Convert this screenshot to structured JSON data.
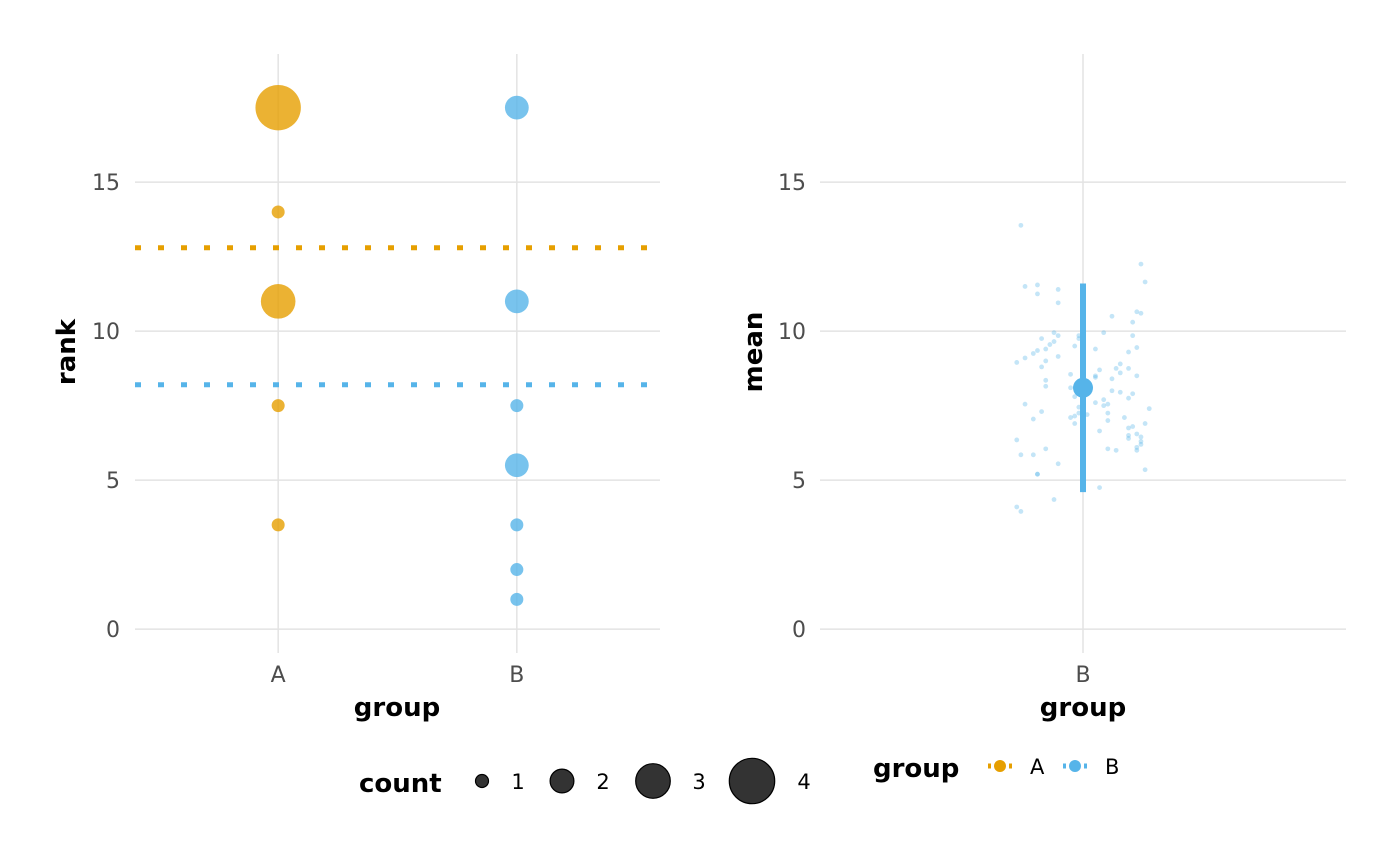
{
  "chart_data": [
    {
      "type": "scatter",
      "xlabel": "group",
      "ylabel": "rank",
      "categories": [
        "A",
        "B"
      ],
      "ylim": [
        -0.8,
        19.3
      ],
      "yticks": [
        0,
        5,
        10,
        15
      ],
      "grid": true,
      "reference_lines": [
        {
          "group": "A",
          "y": 12.8,
          "style": "dotted"
        },
        {
          "group": "B",
          "y": 8.2,
          "style": "dotted"
        }
      ],
      "series": [
        {
          "name": "A",
          "points": [
            {
              "x": "A",
              "y": 17.5,
              "count": 4
            },
            {
              "x": "A",
              "y": 14,
              "count": 1
            },
            {
              "x": "A",
              "y": 11,
              "count": 3
            },
            {
              "x": "A",
              "y": 7.5,
              "count": 1
            },
            {
              "x": "A",
              "y": 3.5,
              "count": 1
            }
          ]
        },
        {
          "name": "B",
          "points": [
            {
              "x": "B",
              "y": 17.5,
              "count": 2
            },
            {
              "x": "B",
              "y": 11,
              "count": 2
            },
            {
              "x": "B",
              "y": 7.5,
              "count": 1
            },
            {
              "x": "B",
              "y": 5.5,
              "count": 2
            },
            {
              "x": "B",
              "y": 3.5,
              "count": 1
            },
            {
              "x": "B",
              "y": 2,
              "count": 1
            },
            {
              "x": "B",
              "y": 1,
              "count": 1
            }
          ]
        }
      ]
    },
    {
      "type": "scatter",
      "xlabel": "group",
      "ylabel": "mean",
      "categories": [
        "B"
      ],
      "ylim": [
        -0.8,
        19.3
      ],
      "yticks": [
        0,
        5,
        10,
        15
      ],
      "grid": true,
      "summary": {
        "group": "B",
        "mean": 8.1,
        "lower": 4.6,
        "upper": 11.6
      },
      "series": [
        {
          "name": "B",
          "jitter_points": [
            {
              "x": -0.15,
              "y": 13.55
            },
            {
              "x": 0.14,
              "y": 12.25
            },
            {
              "x": 0.15,
              "y": 11.65
            },
            {
              "x": -0.11,
              "y": 11.55
            },
            {
              "x": -0.14,
              "y": 11.5
            },
            {
              "x": -0.06,
              "y": 11.4
            },
            {
              "x": -0.11,
              "y": 11.25
            },
            {
              "x": -0.06,
              "y": 10.95
            },
            {
              "x": 0.13,
              "y": 10.65
            },
            {
              "x": 0.14,
              "y": 10.6
            },
            {
              "x": 0.07,
              "y": 10.5
            },
            {
              "x": 0.12,
              "y": 10.3
            },
            {
              "x": 0.05,
              "y": 9.95
            },
            {
              "x": -0.07,
              "y": 9.95
            },
            {
              "x": -0.06,
              "y": 9.85
            },
            {
              "x": -0.01,
              "y": 9.85
            },
            {
              "x": -0.01,
              "y": 9.75
            },
            {
              "x": 0.12,
              "y": 9.85
            },
            {
              "x": -0.1,
              "y": 9.75
            },
            {
              "x": -0.07,
              "y": 9.65
            },
            {
              "x": -0.08,
              "y": 9.55
            },
            {
              "x": 0.13,
              "y": 9.45
            },
            {
              "x": -0.02,
              "y": 9.5
            },
            {
              "x": 0.03,
              "y": 9.4
            },
            {
              "x": -0.11,
              "y": 9.35
            },
            {
              "x": -0.09,
              "y": 9.4
            },
            {
              "x": 0.11,
              "y": 9.3
            },
            {
              "x": -0.12,
              "y": 9.25
            },
            {
              "x": -0.06,
              "y": 9.15
            },
            {
              "x": -0.14,
              "y": 9.1
            },
            {
              "x": -0.09,
              "y": 9.0
            },
            {
              "x": -0.16,
              "y": 8.95
            },
            {
              "x": 0.09,
              "y": 8.9
            },
            {
              "x": 0.11,
              "y": 8.75
            },
            {
              "x": 0.08,
              "y": 8.75
            },
            {
              "x": -0.1,
              "y": 8.8
            },
            {
              "x": 0.04,
              "y": 8.7
            },
            {
              "x": -0.03,
              "y": 8.55
            },
            {
              "x": 0.13,
              "y": 8.5
            },
            {
              "x": 0.09,
              "y": 8.6
            },
            {
              "x": 0.07,
              "y": 8.4
            },
            {
              "x": 0.03,
              "y": 8.5
            },
            {
              "x": -0.09,
              "y": 8.35
            },
            {
              "x": -0.09,
              "y": 8.15
            },
            {
              "x": 0.03,
              "y": 8.45
            },
            {
              "x": -0.03,
              "y": 8.1
            },
            {
              "x": 0.07,
              "y": 8.0
            },
            {
              "x": 0.09,
              "y": 7.95
            },
            {
              "x": 0.12,
              "y": 7.9
            },
            {
              "x": 0.11,
              "y": 7.75
            },
            {
              "x": -0.02,
              "y": 7.8
            },
            {
              "x": 0.05,
              "y": 7.7
            },
            {
              "x": 0.03,
              "y": 7.6
            },
            {
              "x": 0.06,
              "y": 7.55
            },
            {
              "x": -0.14,
              "y": 7.55
            },
            {
              "x": 0.05,
              "y": 7.5
            },
            {
              "x": -0.01,
              "y": 7.45
            },
            {
              "x": 0.16,
              "y": 7.4
            },
            {
              "x": -0.1,
              "y": 7.3
            },
            {
              "x": 0.06,
              "y": 7.25
            },
            {
              "x": -0.01,
              "y": 7.25
            },
            {
              "x": 0.01,
              "y": 7.2
            },
            {
              "x": -0.02,
              "y": 7.15
            },
            {
              "x": -0.03,
              "y": 7.1
            },
            {
              "x": -0.12,
              "y": 7.05
            },
            {
              "x": 0.1,
              "y": 7.1
            },
            {
              "x": 0.06,
              "y": 7.0
            },
            {
              "x": 0.15,
              "y": 6.9
            },
            {
              "x": 0.12,
              "y": 6.8
            },
            {
              "x": 0.11,
              "y": 6.75
            },
            {
              "x": -0.02,
              "y": 6.9
            },
            {
              "x": 0.04,
              "y": 6.65
            },
            {
              "x": 0.13,
              "y": 6.55
            },
            {
              "x": 0.11,
              "y": 6.5
            },
            {
              "x": 0.14,
              "y": 6.45
            },
            {
              "x": 0.11,
              "y": 6.4
            },
            {
              "x": 0.0,
              "y": 6.45
            },
            {
              "x": 0.14,
              "y": 6.3
            },
            {
              "x": -0.16,
              "y": 6.35
            },
            {
              "x": 0.14,
              "y": 6.2
            },
            {
              "x": 0.13,
              "y": 6.1
            },
            {
              "x": 0.06,
              "y": 6.05
            },
            {
              "x": -0.09,
              "y": 6.05
            },
            {
              "x": 0.08,
              "y": 6.0
            },
            {
              "x": 0.13,
              "y": 6.0
            },
            {
              "x": -0.15,
              "y": 5.85
            },
            {
              "x": -0.12,
              "y": 5.85
            },
            {
              "x": -0.06,
              "y": 5.55
            },
            {
              "x": 0.15,
              "y": 5.35
            },
            {
              "x": -0.11,
              "y": 5.2
            },
            {
              "x": -0.11,
              "y": 5.2
            },
            {
              "x": 0.04,
              "y": 4.75
            },
            {
              "x": -0.07,
              "y": 4.35
            },
            {
              "x": -0.16,
              "y": 4.1
            },
            {
              "x": -0.15,
              "y": 3.95
            }
          ]
        }
      ]
    }
  ],
  "colors": {
    "A": "#E69F00",
    "B": "#56B4E9"
  },
  "legends": {
    "count": {
      "title": "count",
      "items": [
        "1",
        "2",
        "3",
        "4"
      ]
    },
    "group": {
      "title": "group",
      "items": [
        "A",
        "B"
      ]
    }
  }
}
